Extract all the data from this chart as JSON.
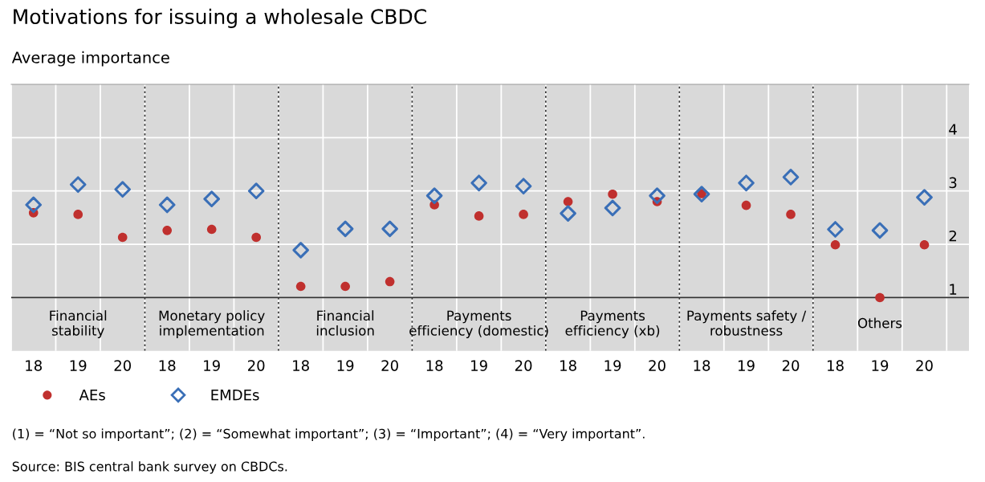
{
  "chart_data": {
    "type": "scatter",
    "title": "Motivations for issuing a wholesale CBDC",
    "subtitle": "Average importance",
    "categories": [
      "18",
      "19",
      "20",
      "18",
      "19",
      "20",
      "18",
      "19",
      "20",
      "18",
      "19",
      "20",
      "18",
      "19",
      "20",
      "18",
      "19",
      "20",
      "18",
      "19",
      "20"
    ],
    "series": [
      {
        "name": "AEs",
        "color": "#c0302e",
        "marker": "circle",
        "values": [
          2.59,
          2.56,
          2.13,
          2.26,
          2.28,
          2.13,
          1.21,
          1.21,
          1.3,
          2.74,
          2.53,
          2.56,
          2.8,
          2.94,
          2.8,
          2.95,
          2.73,
          2.56,
          1.99,
          1.0,
          1.99
        ]
      },
      {
        "name": "EMDEs",
        "color": "#3a6fb7",
        "marker": "diamond",
        "values": [
          2.74,
          3.12,
          3.03,
          2.74,
          2.85,
          3.0,
          1.89,
          2.29,
          2.29,
          2.91,
          3.15,
          3.09,
          2.58,
          2.68,
          2.91,
          2.94,
          3.15,
          3.26,
          2.28,
          2.26,
          2.88
        ]
      }
    ],
    "ylim": [
      0,
      5
    ],
    "yticks": [
      1,
      2,
      3,
      4
    ],
    "grid": true,
    "legend": "bottom left",
    "ref_lines": [
      {
        "axis": "y",
        "value": 1,
        "color": "#333333",
        "line_style": "solid"
      }
    ],
    "annotations": [
      "Financial\nstability",
      "Monetary policy\nimplementation",
      "Financial\ninclusion",
      "Payments\nefficiency (domestic)",
      "Payments\nefficiency (xb)",
      "Payments safety /\nrobustness",
      "Others",
      "(1) = “Not so important”; (2) = “Somewhat important”; (3) = “Important”; (4) = “Very important”.",
      "Source: BIS central bank survey on CBDCs."
    ]
  }
}
